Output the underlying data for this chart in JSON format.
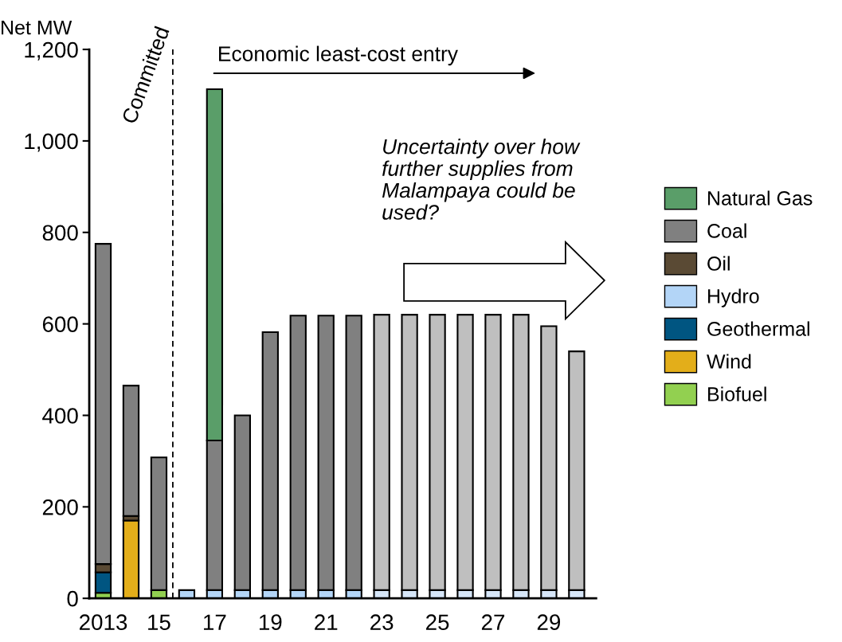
{
  "chart_data": {
    "type": "bar",
    "stacked": true,
    "ylabel": "Net MW",
    "x": [
      2013,
      2014,
      2015,
      2016,
      2017,
      2018,
      2019,
      2020,
      2021,
      2022,
      2023,
      2024,
      2025,
      2026,
      2027,
      2028,
      2029,
      2030
    ],
    "xlim": [
      2012.5,
      2030.7
    ],
    "xticks": [
      {
        "value": 2013,
        "label": "2013"
      },
      {
        "value": 2015,
        "label": "15"
      },
      {
        "value": 2017,
        "label": "17"
      },
      {
        "value": 2019,
        "label": "19"
      },
      {
        "value": 2021,
        "label": "21"
      },
      {
        "value": 2023,
        "label": "23"
      },
      {
        "value": 2025,
        "label": "25"
      },
      {
        "value": 2027,
        "label": "27"
      },
      {
        "value": 2029,
        "label": "29"
      }
    ],
    "ylim": [
      0,
      1200
    ],
    "yticks": [
      {
        "value": 0,
        "label": "0"
      },
      {
        "value": 200,
        "label": "200"
      },
      {
        "value": 400,
        "label": "400"
      },
      {
        "value": 600,
        "label": "600"
      },
      {
        "value": 800,
        "label": "800"
      },
      {
        "value": 1000,
        "label": "1,000"
      },
      {
        "value": 1200,
        "label": "1,200"
      }
    ],
    "series": [
      {
        "name": "Biofuel",
        "color": "#92d050",
        "values": [
          12,
          null,
          18,
          null,
          null,
          null,
          null,
          null,
          null,
          null,
          null,
          null,
          null,
          null,
          null,
          null,
          null,
          null
        ]
      },
      {
        "name": "Wind",
        "color": "#e3ae1a",
        "values": [
          null,
          170,
          null,
          null,
          null,
          null,
          null,
          null,
          null,
          null,
          null,
          null,
          null,
          null,
          null,
          null,
          null,
          null
        ]
      },
      {
        "name": "Geothermal",
        "color": "#005581",
        "values": [
          45,
          null,
          null,
          null,
          null,
          null,
          null,
          null,
          null,
          null,
          null,
          null,
          null,
          null,
          null,
          null,
          null,
          null
        ]
      },
      {
        "name": "Hydro",
        "color": "#b3d5f7",
        "colors": [
          "#b3d5f7",
          "#b3d5f7",
          "#b3d5f7",
          "#b3d5f7",
          "#b3d5f7",
          "#b3d5f7",
          "#b3d5f7",
          "#b3d5f7",
          "#b3d5f7",
          "#b3d5f7",
          "#d6e6f8",
          "#d6e6f8",
          "#d6e6f8",
          "#d6e6f8",
          "#d6e6f8",
          "#d6e6f8",
          "#d6e6f8",
          "#d6e6f8"
        ],
        "values": [
          null,
          null,
          null,
          18,
          18,
          18,
          18,
          18,
          18,
          18,
          18,
          18,
          18,
          18,
          18,
          18,
          18,
          18
        ]
      },
      {
        "name": "Oil",
        "color": "#5a4a34",
        "values": [
          18,
          10,
          null,
          null,
          null,
          null,
          null,
          null,
          null,
          null,
          null,
          null,
          null,
          null,
          null,
          null,
          null,
          null
        ]
      },
      {
        "name": "Coal",
        "color": "#808080",
        "colors": [
          "#808080",
          "#808080",
          "#808080",
          "#808080",
          "#808080",
          "#808080",
          "#808080",
          "#808080",
          "#808080",
          "#808080",
          "#bfbfbf",
          "#bfbfbf",
          "#bfbfbf",
          "#bfbfbf",
          "#bfbfbf",
          "#bfbfbf",
          "#bfbfbf",
          "#bfbfbf"
        ],
        "values": [
          700,
          285,
          290,
          null,
          327,
          382,
          564,
          600,
          600,
          600,
          602,
          602,
          602,
          602,
          602,
          602,
          577,
          522
        ]
      },
      {
        "name": "Natural Gas",
        "color": "#5a9e69",
        "values": [
          null,
          null,
          null,
          null,
          768,
          null,
          null,
          null,
          null,
          null,
          null,
          null,
          null,
          null,
          null,
          null,
          null,
          null
        ]
      }
    ],
    "ref_lines": [
      {
        "axis": "x",
        "value": 2015.5,
        "color": "#000000",
        "line_style": "dashed"
      }
    ],
    "annotations": [
      "Committed",
      "Economic least-cost entry",
      "Uncertainty over how further supplies from Malampaya could be used?"
    ],
    "legend": "right",
    "grid": false
  }
}
